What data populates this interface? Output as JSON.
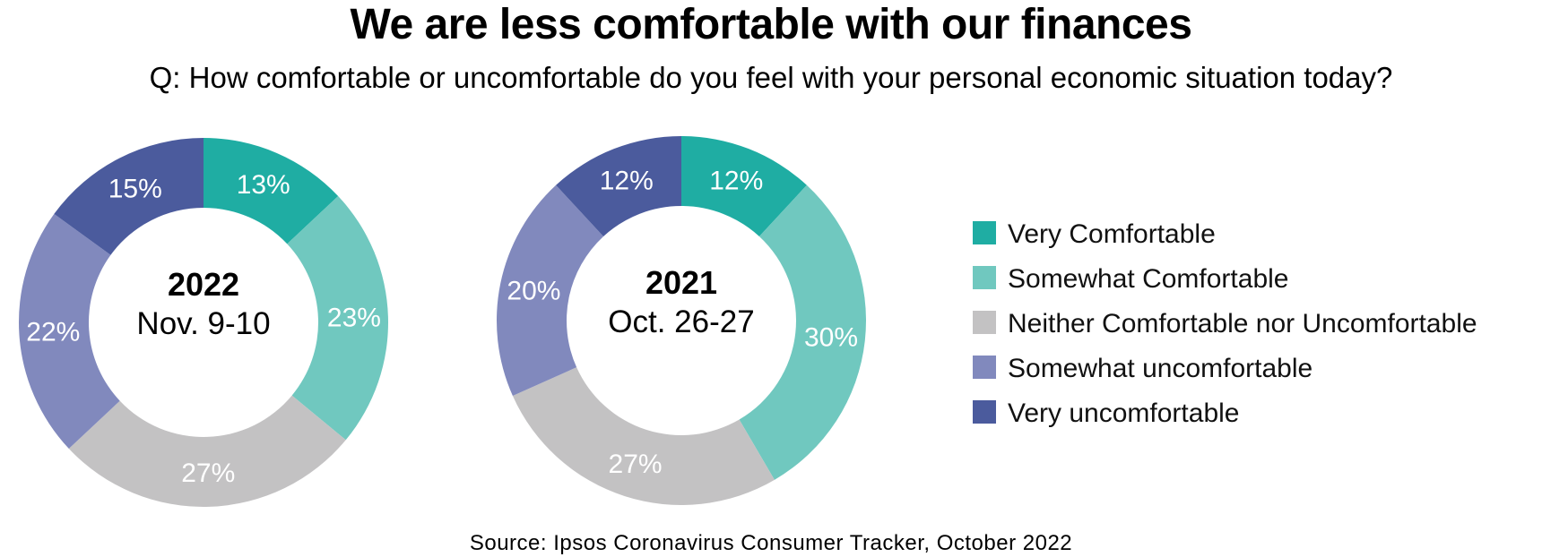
{
  "title": "We are less comfortable with our finances",
  "question": "Q: How comfortable or uncomfortable do you feel with your personal economic situation today?",
  "source": "Source: Ipsos Coronavirus Consumer Tracker, October 2022",
  "chart_data": [
    {
      "type": "pie",
      "center_line1": "2022",
      "center_line2": "Nov. 9-10",
      "categories": [
        "Very Comfortable",
        "Somewhat Comfortable",
        "Neither Comfortable nor Uncomfortable",
        "Somewhat uncomfortable",
        "Very uncomfortable"
      ],
      "values": [
        13,
        23,
        27,
        22,
        15
      ],
      "labels": [
        "13%",
        "23%",
        "27%",
        "22%",
        "15%"
      ]
    },
    {
      "type": "pie",
      "center_line1": "2021",
      "center_line2": "Oct. 26-27",
      "categories": [
        "Very Comfortable",
        "Somewhat Comfortable",
        "Neither Comfortable nor Uncomfortable",
        "Somewhat uncomfortable",
        "Very uncomfortable"
      ],
      "values": [
        12,
        30,
        27,
        20,
        12
      ],
      "labels": [
        "12%",
        "30%",
        "27%",
        "20%",
        "12%"
      ]
    }
  ],
  "legend": [
    {
      "label": "Very Comfortable",
      "color": "#1fada3"
    },
    {
      "label": "Somewhat Comfortable",
      "color": "#70c8bf"
    },
    {
      "label": "Neither Comfortable nor Uncomfortable",
      "color": "#c3c2c3"
    },
    {
      "label": "Somewhat uncomfortable",
      "color": "#8189bd"
    },
    {
      "label": "Very uncomfortable",
      "color": "#4b5b9d"
    }
  ]
}
